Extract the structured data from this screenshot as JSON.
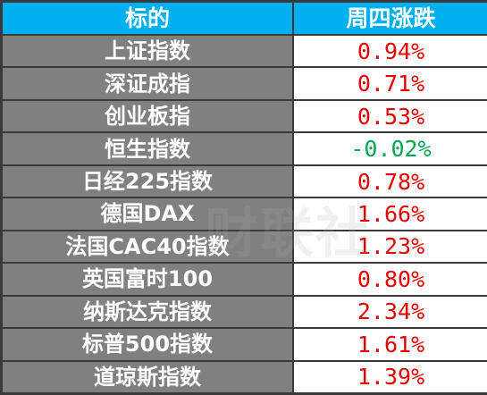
{
  "header": {
    "col_name": "标的",
    "col_change": "周四涨跌"
  },
  "rows": [
    {
      "name": "上证指数",
      "change": "0.94%",
      "direction": "up"
    },
    {
      "name": "深证成指",
      "change": "0.71%",
      "direction": "up"
    },
    {
      "name": "创业板指",
      "change": "0.53%",
      "direction": "up"
    },
    {
      "name": "恒生指数",
      "change": "-0.02%",
      "direction": "down"
    },
    {
      "name": "日经225指数",
      "change": "0.78%",
      "direction": "up"
    },
    {
      "name": "德国DAX",
      "change": "1.66%",
      "direction": "up"
    },
    {
      "name": "法国CAC40指数",
      "change": "1.23%",
      "direction": "up"
    },
    {
      "name": "英国富时100",
      "change": "0.80%",
      "direction": "up"
    },
    {
      "name": "纳斯达克指数",
      "change": "2.34%",
      "direction": "up"
    },
    {
      "name": "标普500指数",
      "change": "1.61%",
      "direction": "up"
    },
    {
      "name": "道琼斯指数",
      "change": "1.39%",
      "direction": "up"
    }
  ],
  "watermark": "财联社",
  "colors": {
    "header_bg": "#00b0f0",
    "name_cell_bg": "#808080",
    "up": "#e60000",
    "down": "#00a651"
  }
}
